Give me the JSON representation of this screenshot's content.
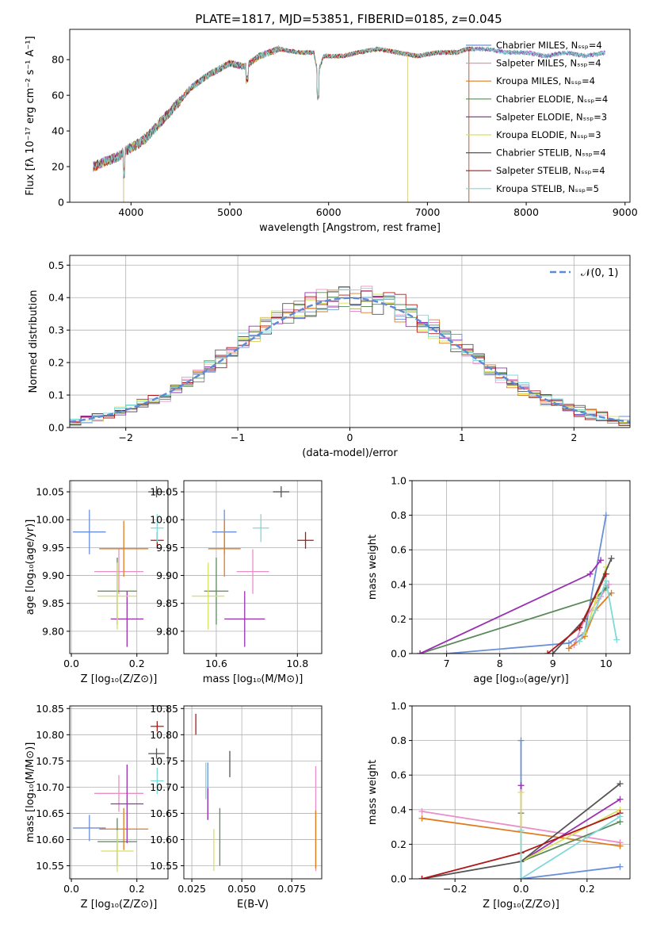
{
  "title": "PLATE=1817, MJD=53851, FIBERID=0185, z=0.045",
  "colors": [
    "#6a8fd8",
    "#e88fc8",
    "#e07b20",
    "#5a8a5a",
    "#9a30b0",
    "#d8e060",
    "#555555",
    "#b01818",
    "#80d8d8"
  ],
  "legend_models": [
    "Chabrier MILES, Nₛₛₚ=4",
    "Salpeter MILES, Nₛₛₚ=4",
    "Kroupa MILES, Nₛₛₚ=4",
    "Chabrier ELODIE, Nₛₛₚ=4",
    "Salpeter ELODIE, Nₛₛₚ=3",
    "Kroupa ELODIE, Nₛₛₚ=3",
    "Chabrier STELIB, Nₛₛₚ=4",
    "Salpeter STELIB, Nₛₛₚ=4",
    "Kroupa STELIB, Nₛₛₚ=5"
  ],
  "chart_data": [
    {
      "id": "spectrum",
      "type": "line",
      "title": "PLATE=1817, MJD=53851, FIBERID=0185, z=0.045",
      "xlabel": "wavelength [Angstrom, rest frame]",
      "ylabel": "Flux [fλ 10⁻¹⁷ erg cm⁻² s⁻¹ A⁻¹]",
      "xlim": [
        3380,
        9050
      ],
      "ylim": [
        0,
        97
      ],
      "xticks": [
        4000,
        5000,
        6000,
        7000,
        8000,
        9000
      ],
      "yticks": [
        0,
        20,
        40,
        60,
        80
      ],
      "grid": false,
      "legend": "upper right",
      "series_names": [
        "Chabrier MILES, NSSP=4",
        "Salpeter MILES, NSSP=4",
        "Kroupa MILES, NSSP=4",
        "Chabrier ELODIE, NSSP=4",
        "Salpeter ELODIE, NSSP=3",
        "Kroupa ELODIE, NSSP=3",
        "Chabrier STELIB, NSSP=4",
        "Salpeter STELIB, NSSP=4",
        "Kroupa STELIB, NSSP=5"
      ],
      "x": [
        3620,
        3700,
        3800,
        3880,
        3920,
        3980,
        4050,
        4150,
        4250,
        4350,
        4450,
        4600,
        4800,
        5000,
        5150,
        5300,
        5500,
        5700,
        5850,
        5890,
        5950,
        6150,
        6300,
        6500,
        6700,
        6900,
        7100,
        7300,
        7400,
        7600,
        7800,
        8000,
        8200,
        8400,
        8600,
        8800
      ],
      "y": [
        20,
        22,
        24,
        26,
        28,
        30,
        32,
        36,
        42,
        48,
        54,
        64,
        72,
        78,
        76,
        82,
        86,
        84,
        84,
        72,
        82,
        82,
        84,
        86,
        84,
        82,
        84,
        84,
        86,
        86,
        84,
        84,
        82,
        84,
        82,
        84
      ]
    },
    {
      "id": "residuals",
      "type": "histogram",
      "xlabel": "(data-model)/error",
      "ylabel": "Normed distribution",
      "xlim": [
        -2.5,
        2.5
      ],
      "ylim": [
        0,
        0.53
      ],
      "xticks": [
        -2,
        -1,
        0,
        1,
        2
      ],
      "yticks": [
        0.0,
        0.1,
        0.2,
        0.3,
        0.4,
        0.5
      ],
      "grid": true,
      "legend": "upper right",
      "reference_label": "𝒩(0, 1)",
      "bin_width": 0.1
    },
    {
      "id": "age_vs_Z",
      "type": "scatter",
      "xlabel": "Z [log₁₀(Z/Z⊙)]",
      "ylabel": "age  [log₁₀(age/yr)]",
      "xlim": [
        -0.005,
        0.295
      ],
      "ylim": [
        9.76,
        10.07
      ],
      "xticks": [
        0.0,
        0.2
      ],
      "yticks": [
        9.8,
        9.85,
        9.9,
        9.95,
        10.0,
        10.05
      ],
      "grid": true,
      "points": [
        {
          "x": 0.055,
          "y": 9.978,
          "xerr": 0.05,
          "yerr": 0.04
        },
        {
          "x": 0.145,
          "y": 9.907,
          "xerr": 0.075,
          "yerr": 0.04
        },
        {
          "x": 0.16,
          "y": 9.948,
          "xerr": 0.075,
          "yerr": 0.05
        },
        {
          "x": 0.14,
          "y": 9.872,
          "xerr": 0.06,
          "yerr": 0.06
        },
        {
          "x": 0.17,
          "y": 9.822,
          "xerr": 0.05,
          "yerr": 0.05
        },
        {
          "x": 0.14,
          "y": 9.863,
          "xerr": 0.06,
          "yerr": 0.06
        },
        {
          "x": 0.26,
          "y": 10.05,
          "xerr": 0.025,
          "yerr": 0.01
        },
        {
          "x": 0.262,
          "y": 9.963,
          "xerr": 0.02,
          "yerr": 0.015
        },
        {
          "x": 0.262,
          "y": 9.985,
          "xerr": 0.02,
          "yerr": 0.025
        }
      ]
    },
    {
      "id": "age_vs_mass",
      "type": "scatter",
      "xlabel": "mass [log₁₀(M/M⊙)]",
      "xlim": [
        10.52,
        10.86
      ],
      "ylim": [
        9.76,
        10.07
      ],
      "xticks": [
        10.6,
        10.8
      ],
      "yticks": [
        9.8,
        9.85,
        9.9,
        9.95,
        10.0,
        10.05
      ],
      "grid": true,
      "points": [
        {
          "x": 10.62,
          "y": 9.978,
          "xerr": 0.03,
          "yerr": 0.04
        },
        {
          "x": 10.69,
          "y": 9.907,
          "xerr": 0.04,
          "yerr": 0.04
        },
        {
          "x": 10.62,
          "y": 9.948,
          "xerr": 0.04,
          "yerr": 0.05
        },
        {
          "x": 10.6,
          "y": 9.872,
          "xerr": 0.03,
          "yerr": 0.06
        },
        {
          "x": 10.67,
          "y": 9.822,
          "xerr": 0.05,
          "yerr": 0.05
        },
        {
          "x": 10.58,
          "y": 9.863,
          "xerr": 0.04,
          "yerr": 0.06
        },
        {
          "x": 10.76,
          "y": 10.05,
          "xerr": 0.02,
          "yerr": 0.01
        },
        {
          "x": 10.82,
          "y": 9.963,
          "xerr": 0.02,
          "yerr": 0.015
        },
        {
          "x": 10.71,
          "y": 9.985,
          "xerr": 0.02,
          "yerr": 0.025
        }
      ]
    },
    {
      "id": "weight_vs_age",
      "type": "line",
      "xlabel": "age  [log₁₀(age/yr)]",
      "ylabel": "mass weight",
      "xlim": [
        6.35,
        10.45
      ],
      "ylim": [
        0,
        1.0
      ],
      "xticks": [
        7,
        8,
        9,
        10
      ],
      "yticks": [
        0.0,
        0.2,
        0.4,
        0.6,
        0.8,
        1.0
      ],
      "grid": true,
      "series": [
        {
          "x": [
            7.0,
            9.3,
            9.6,
            10.0
          ],
          "y": [
            0.0,
            0.06,
            0.12,
            0.8
          ]
        },
        {
          "x": [
            9.4,
            9.6,
            9.9,
            10.05
          ],
          "y": [
            0.05,
            0.2,
            0.33,
            0.4
          ]
        },
        {
          "x": [
            9.3,
            9.6,
            9.8,
            10.1
          ],
          "y": [
            0.03,
            0.1,
            0.25,
            0.35
          ]
        },
        {
          "x": [
            6.5,
            9.8,
            10.0
          ],
          "y": [
            0.0,
            0.32,
            0.38
          ]
        },
        {
          "x": [
            6.5,
            9.7,
            9.9
          ],
          "y": [
            0.0,
            0.46,
            0.54
          ]
        },
        {
          "x": [
            9.6,
            9.8,
            10.0
          ],
          "y": [
            0.12,
            0.3,
            0.5
          ]
        },
        {
          "x": [
            9.0,
            9.6,
            10.1
          ],
          "y": [
            0.0,
            0.2,
            0.55
          ]
        },
        {
          "x": [
            8.9,
            9.5,
            10.0
          ],
          "y": [
            0.0,
            0.15,
            0.46
          ]
        },
        {
          "x": [
            9.5,
            9.8,
            10.0,
            10.2
          ],
          "y": [
            0.07,
            0.25,
            0.42,
            0.08
          ]
        }
      ]
    },
    {
      "id": "mass_vs_Z",
      "type": "scatter",
      "xlabel": "Z [log₁₀(Z/Z⊙)]",
      "ylabel": "mass [log₁₀(M/M⊙)]",
      "xlim": [
        -0.005,
        0.295
      ],
      "ylim": [
        10.525,
        10.855
      ],
      "xticks": [
        0.0,
        0.2
      ],
      "yticks": [
        10.55,
        10.6,
        10.65,
        10.7,
        10.75,
        10.8,
        10.85
      ],
      "grid": true,
      "points": [
        {
          "x": 0.055,
          "y": 10.622,
          "xerr": 0.05,
          "yerr": 0.025
        },
        {
          "x": 0.145,
          "y": 10.688,
          "xerr": 0.075,
          "yerr": 0.035
        },
        {
          "x": 0.16,
          "y": 10.62,
          "xerr": 0.075,
          "yerr": 0.04
        },
        {
          "x": 0.14,
          "y": 10.596,
          "xerr": 0.06,
          "yerr": 0.045
        },
        {
          "x": 0.17,
          "y": 10.668,
          "xerr": 0.05,
          "yerr": 0.075
        },
        {
          "x": 0.14,
          "y": 10.578,
          "xerr": 0.05,
          "yerr": 0.04
        },
        {
          "x": 0.26,
          "y": 10.764,
          "xerr": 0.025,
          "yerr": 0.01
        },
        {
          "x": 0.262,
          "y": 10.816,
          "xerr": 0.02,
          "yerr": 0.01
        },
        {
          "x": 0.262,
          "y": 10.712,
          "xerr": 0.02,
          "yerr": 0.025
        }
      ]
    },
    {
      "id": "mass_vs_ebv",
      "type": "scatter",
      "xlabel": "E(B-V)",
      "xlim": [
        0.021,
        0.09
      ],
      "ylim": [
        10.525,
        10.855
      ],
      "xticks": [
        0.025,
        0.05,
        0.075
      ],
      "yticks": [
        10.55,
        10.6,
        10.65,
        10.7,
        10.75,
        10.8,
        10.85
      ],
      "grid": true,
      "points": [
        {
          "x": 0.033,
          "y": 10.692,
          "yerr": 0.055
        },
        {
          "x": 0.087,
          "y": 10.64,
          "yerr": 0.1
        },
        {
          "x": 0.087,
          "y": 10.6,
          "yerr": 0.055
        },
        {
          "x": 0.039,
          "y": 10.605,
          "yerr": 0.055
        },
        {
          "x": 0.033,
          "y": 10.668,
          "yerr": 0.03
        },
        {
          "x": 0.036,
          "y": 10.58,
          "yerr": 0.04
        },
        {
          "x": 0.044,
          "y": 10.744,
          "yerr": 0.025
        },
        {
          "x": 0.027,
          "y": 10.82,
          "yerr": 0.02
        },
        {
          "x": 0.032,
          "y": 10.712,
          "yerr": 0.035
        }
      ]
    },
    {
      "id": "weight_vs_Z",
      "type": "line",
      "xlabel": "Z [log₁₀(Z/Z⊙)]",
      "ylabel": "mass weight",
      "xlim": [
        -0.33,
        0.33
      ],
      "ylim": [
        0,
        1.0
      ],
      "xticks": [
        -0.2,
        0.0,
        0.2
      ],
      "yticks": [
        0.0,
        0.2,
        0.4,
        0.6,
        0.8,
        1.0
      ],
      "grid": true,
      "series": [
        {
          "x": [
            0.0,
            0.0,
            0.3
          ],
          "y": [
            0.8,
            0.0,
            0.07
          ]
        },
        {
          "x": [
            -0.3,
            0.3
          ],
          "y": [
            0.39,
            0.21
          ]
        },
        {
          "x": [
            -0.3,
            0.3
          ],
          "y": [
            0.35,
            0.19
          ]
        },
        {
          "x": [
            0.0,
            0.0,
            0.3
          ],
          "y": [
            0.38,
            0.1,
            0.33
          ]
        },
        {
          "x": [
            0.0,
            0.0,
            0.3
          ],
          "y": [
            0.54,
            0.1,
            0.46
          ]
        },
        {
          "x": [
            0.0,
            0.0,
            0.3
          ],
          "y": [
            0.5,
            0.1,
            0.4
          ]
        },
        {
          "x": [
            -0.3,
            0.0,
            0.3
          ],
          "y": [
            0.0,
            0.1,
            0.55
          ]
        },
        {
          "x": [
            -0.3,
            0.0,
            0.3
          ],
          "y": [
            0.0,
            0.15,
            0.38
          ]
        },
        {
          "x": [
            0.0,
            0.0,
            0.3
          ],
          "y": [
            0.28,
            0.0,
            0.36
          ]
        }
      ]
    }
  ]
}
